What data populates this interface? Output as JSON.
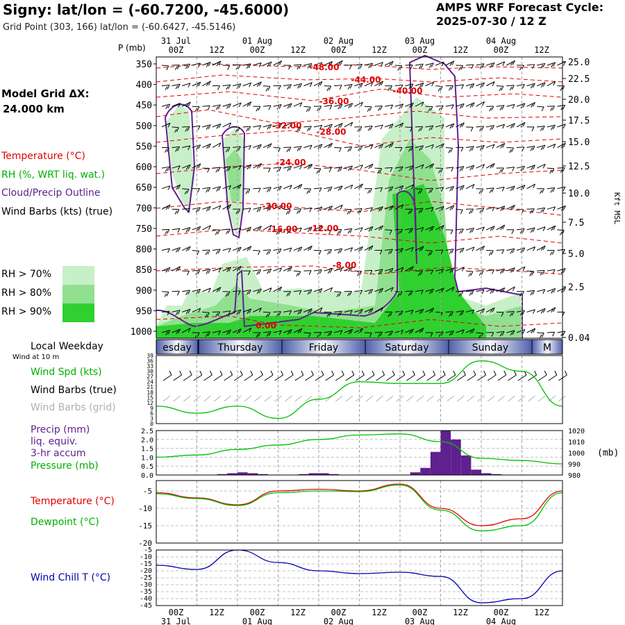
{
  "header": {
    "station_title": "Signy:  lat/lon = (-60.7200, -45.6000)",
    "grid_point": "Grid Point (303, 166) lat/lon = (-60.6427, -45.5146)",
    "forecast_label": "AMPS WRF Forecast Cycle:",
    "forecast_cycle": "2025-07-30 / 12  Z"
  },
  "side": {
    "model_grid_label": "Model Grid ΔX:",
    "model_grid_value": "24.000 km",
    "legend_temperature": "Temperature (°C)",
    "legend_rh": "RH (%, WRT liq. wat.)",
    "legend_cloud": "Cloud/Precip Outline",
    "legend_barbs": "Wind Barbs (kts) (true)",
    "rh_levels": [
      "RH > 70%",
      "RH > 80%",
      "RH > 90%"
    ],
    "local_weekday": "Local Weekday",
    "wind_at_10m": "Wind at 10 m",
    "wind_spd": "Wind Spd (kts)",
    "wind_barbs_true": "Wind Barbs (true)",
    "wind_barbs_grid": "Wind Barbs (grid)",
    "precip_1": "Precip (mm)",
    "precip_2": "liq. equiv.",
    "precip_3": "3-hr accum",
    "pressure": "Pressure (mb)",
    "temperature": "Temperature (°C)",
    "dewpoint": "Dewpoint (°C)",
    "wind_chill": "Wind Chill T (°C)"
  },
  "colors": {
    "temperature": "#e00000",
    "rh_label": "#00b000",
    "cloud": "#602090",
    "rh70": "#c8f0c8",
    "rh80": "#90e090",
    "rh90": "#30d030",
    "wind_spd": "#00c000",
    "grid_barbs": "#b0b0b0",
    "precip": "#602090",
    "wind_chill": "#0000b0",
    "weekday_band": "#5060a8"
  },
  "time_axis": {
    "tick_labels": [
      "00Z",
      "12Z",
      "00Z",
      "12Z",
      "00Z",
      "12Z",
      "00Z",
      "12Z",
      "00Z",
      "12Z"
    ],
    "date_labels": [
      "31 Jul",
      "01 Aug",
      "02 Aug",
      "03 Aug",
      "04 Aug"
    ],
    "weekdays": [
      "esday",
      "Thursday",
      "Friday",
      "Saturday",
      "Sunday",
      "M"
    ]
  },
  "cross_section": {
    "pressure_unit": "P (mb)",
    "pressure_ticks": [
      "350",
      "400",
      "450",
      "500",
      "550",
      "600",
      "650",
      "700",
      "750",
      "800",
      "850",
      "900",
      "950",
      "1000"
    ],
    "height_unit": "Kft MSL",
    "height_ticks": [
      "25.0",
      "22.5",
      "20.0",
      "17.5",
      "15.0",
      "12.5",
      "10.0",
      "7.5",
      "5.0",
      "2.5",
      "0.04"
    ],
    "temp_labels": [
      "-48.00",
      "-44.00",
      "-40.00",
      "-36.00",
      "-32.00",
      "-28.00",
      "-24.00",
      "-20.00",
      "-16.00",
      "-12.00",
      "-8.00",
      "0.00"
    ]
  },
  "chart_data": [
    {
      "type": "line",
      "title": "Wind Spd (kts)",
      "x": [
        "07-30 12Z",
        "07-31 00Z",
        "07-31 12Z",
        "08-01 00Z",
        "08-01 12Z",
        "08-02 00Z",
        "08-02 12Z",
        "08-03 00Z",
        "08-03 12Z",
        "08-04 00Z",
        "08-04 12Z"
      ],
      "yticks": [
        "39",
        "36",
        "33",
        "30",
        "27",
        "24",
        "21",
        "18",
        "15",
        "12",
        "9",
        "6",
        "3",
        "0"
      ],
      "ylim": [
        0,
        39
      ],
      "series": [
        {
          "name": "Wind Spd (kts)",
          "values": [
            10,
            6,
            10,
            3,
            14,
            24,
            23,
            23,
            36,
            30,
            10
          ]
        }
      ]
    },
    {
      "type": "bar",
      "title": "Precip (mm)",
      "yticks_left": [
        "2.5",
        "2.0",
        "1.5",
        "1.0",
        "0.5",
        "0.0"
      ],
      "yticks_right": [
        "1020",
        "1010",
        "1000",
        "990",
        "980"
      ],
      "right_unit": "(mb)",
      "ylim": [
        0,
        2.5
      ],
      "precip": [
        0,
        0,
        0,
        0,
        0,
        0,
        0.05,
        0.1,
        0.15,
        0.1,
        0.05,
        0,
        0,
        0,
        0.05,
        0.1,
        0.1,
        0.05,
        0,
        0,
        0,
        0,
        0,
        0,
        0,
        0.15,
        0.4,
        1.3,
        2.5,
        2.0,
        1.1,
        0.3,
        0.1,
        0.05,
        0,
        0,
        0,
        0,
        0,
        0
      ],
      "pressure_mb": [
        996,
        998,
        1003,
        1007,
        1012,
        1016,
        1017,
        1010,
        995,
        993,
        990
      ],
      "series": [
        {
          "name": "Pressure (mb)",
          "values": [
            996,
            998,
            1003,
            1007,
            1012,
            1016,
            1017,
            1010,
            995,
            993,
            990
          ]
        }
      ]
    },
    {
      "type": "line",
      "title": "Temperature (°C)",
      "yticks": [
        "-5",
        "-10",
        "-15",
        "-20"
      ],
      "ylim": [
        -20,
        -2
      ],
      "series": [
        {
          "name": "Temperature (°C)",
          "values": [
            -5.5,
            -7,
            -9,
            -5,
            -4.5,
            -5,
            -3,
            -10,
            -15,
            -13,
            -5
          ]
        },
        {
          "name": "Dewpoint (°C)",
          "values": [
            -5.8,
            -7.2,
            -9.2,
            -5.5,
            -5,
            -5.2,
            -3.3,
            -10.5,
            -16.5,
            -15,
            -5.5
          ]
        }
      ]
    },
    {
      "type": "line",
      "title": "Wind Chill T (°C)",
      "yticks": [
        "-5",
        "-10",
        "-15",
        "-20",
        "-25",
        "-30",
        "-35",
        "-40",
        "-45"
      ],
      "ylim": [
        -45,
        -5
      ],
      "series": [
        {
          "name": "Wind Chill T (°C)",
          "values": [
            -16,
            -19,
            -5,
            -14,
            -20,
            -22,
            -21,
            -24,
            -43,
            -40,
            -20
          ]
        }
      ]
    }
  ]
}
